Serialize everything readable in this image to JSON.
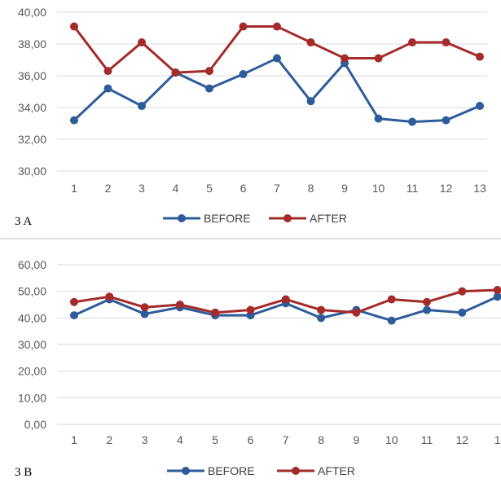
{
  "chart_data": [
    {
      "type": "line",
      "panel_label": "3 A",
      "title": "",
      "xlabel": "",
      "ylabel": "",
      "categories": [
        "1",
        "2",
        "3",
        "4",
        "5",
        "6",
        "7",
        "8",
        "9",
        "10",
        "11",
        "12",
        "13"
      ],
      "ylim": [
        30,
        40
      ],
      "yticks": [
        30,
        32,
        34,
        36,
        38,
        40
      ],
      "ytick_labels": [
        "30,00",
        "32,00",
        "34,00",
        "36,00",
        "38,00",
        "40,00"
      ],
      "grid": true,
      "legend_position": "bottom",
      "series": [
        {
          "name": "BEFORE",
          "color": "#2E5C9A",
          "values": [
            33.2,
            35.2,
            34.1,
            36.2,
            35.2,
            36.1,
            37.1,
            34.4,
            36.8,
            33.3,
            33.1,
            33.2,
            34.1
          ]
        },
        {
          "name": "AFTER",
          "color": "#A52A2A",
          "values": [
            39.1,
            36.3,
            38.1,
            36.2,
            36.3,
            39.1,
            39.1,
            38.1,
            37.1,
            37.1,
            38.1,
            38.1,
            37.2
          ]
        }
      ]
    },
    {
      "type": "line",
      "panel_label": "3 B",
      "title": "",
      "xlabel": "",
      "ylabel": "",
      "categories": [
        "1",
        "2",
        "3",
        "4",
        "5",
        "6",
        "7",
        "8",
        "9",
        "10",
        "11",
        "12",
        "1"
      ],
      "ylim": [
        0,
        60
      ],
      "yticks": [
        0,
        10,
        20,
        30,
        40,
        50,
        60
      ],
      "ytick_labels": [
        "0,00",
        "10,00",
        "20,00",
        "30,00",
        "40,00",
        "50,00",
        "60,00"
      ],
      "grid": true,
      "legend_position": "bottom",
      "series": [
        {
          "name": "BEFORE",
          "color": "#2E5C9A",
          "values": [
            41,
            47,
            41.5,
            44,
            41,
            41,
            45.5,
            40,
            43,
            39,
            43,
            42,
            48
          ]
        },
        {
          "name": "AFTER",
          "color": "#A52A2A",
          "values": [
            46,
            48,
            44,
            45,
            42,
            43,
            47,
            43,
            42,
            47,
            46,
            50,
            50.5
          ]
        }
      ]
    }
  ]
}
